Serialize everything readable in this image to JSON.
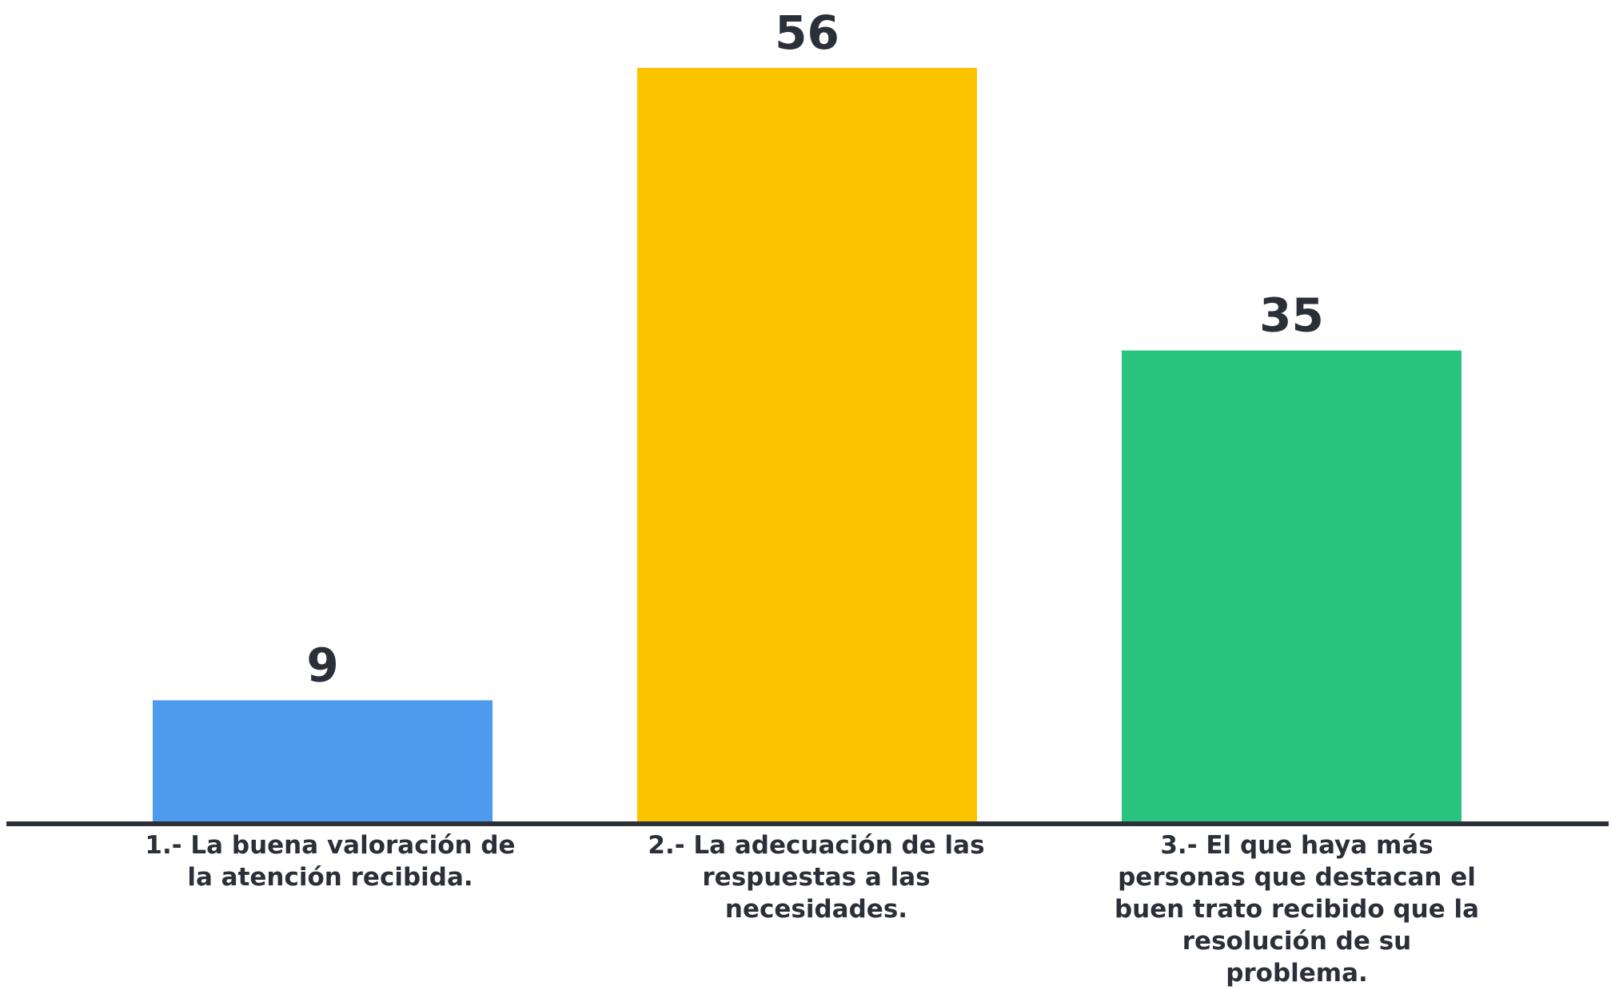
{
  "chart_data": {
    "type": "bar",
    "title": "",
    "xlabel": "",
    "ylabel": "",
    "ylim": [
      0,
      56
    ],
    "grid": false,
    "legend": "none",
    "categories": [
      "1.- La buena valoración de la atención recibida.",
      "2.- La adecuación de las respuestas a las necesidades.",
      "3.- El que haya más personas que destacan el buen trato recibido que la resolución de su problema."
    ],
    "values": [
      9,
      56,
      35
    ],
    "data_labels": [
      "9",
      "56",
      "35"
    ],
    "colors": [
      "#4d9aee",
      "#fbc300",
      "#28c47f"
    ],
    "axis_color": "#2b2f38"
  }
}
